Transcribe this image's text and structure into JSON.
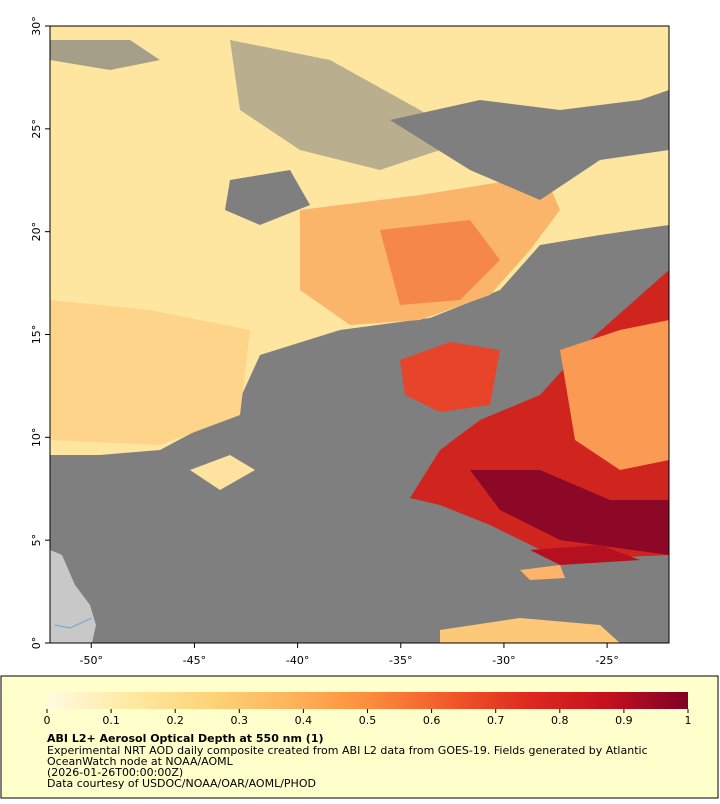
{
  "map": {
    "xlim": [
      -52,
      -22
    ],
    "ylim": [
      0,
      30
    ],
    "xticks": [
      {
        "value": -50,
        "label": "-50°"
      },
      {
        "value": -45,
        "label": "-45°"
      },
      {
        "value": -40,
        "label": "-40°"
      },
      {
        "value": -35,
        "label": "-35°"
      },
      {
        "value": -30,
        "label": "-30°"
      },
      {
        "value": -25,
        "label": "-25°"
      }
    ],
    "yticks": [
      {
        "value": 0,
        "label": "0°"
      },
      {
        "value": 5,
        "label": "5°"
      },
      {
        "value": 10,
        "label": "10°"
      },
      {
        "value": 15,
        "label": "15°"
      },
      {
        "value": 20,
        "label": "20°"
      },
      {
        "value": 25,
        "label": "25°"
      },
      {
        "value": 30,
        "label": "30°"
      }
    ]
  },
  "colorbar": {
    "range": [
      0,
      1
    ],
    "ticks": [
      0,
      0.1,
      0.2,
      0.3,
      0.4,
      0.5,
      0.6,
      0.7,
      0.8,
      0.9,
      1
    ],
    "colors": [
      "#fffbe0",
      "#ffeaa4",
      "#fed47a",
      "#feb55c",
      "#fd8d3c",
      "#f25a2a",
      "#de2a1f",
      "#c4101f",
      "#800026"
    ]
  },
  "caption": {
    "title": "ABI L2+ Aerosol Optical Depth at 550 nm (1)",
    "lines": [
      "Experimental NRT AOD daily composite created from ABI L2 data from GOES-19. Fields generated by Atlantic",
      "OceanWatch node at NOAA/AOML",
      "(2026-01-26T00:00:00Z)",
      "Data courtesy of USDOC/NOAA/OAR/AOML/PHOD"
    ]
  }
}
